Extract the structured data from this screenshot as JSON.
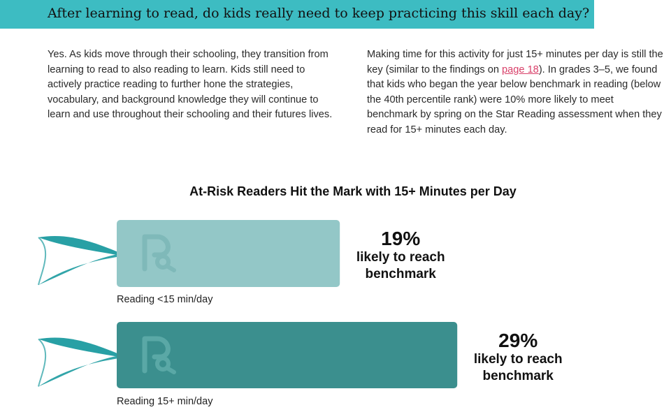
{
  "header": {
    "question": "After learning to read, do kids really need to keep practicing this skill each day?"
  },
  "body": {
    "left_paragraph": "Yes. As kids move through their schooling, they transition from learning to read to also reading to learn. Kids still need to actively practice reading to further hone the strategies, vocabulary, and background knowledge they will continue to learn and use throughout their schooling and their futures lives.",
    "right_before_link": "Making time for this activity for just 15+ minutes per day is still the key (similar to the findings on ",
    "right_link": "page 18",
    "right_after_link": "). In grades 3–5, we found that kids who began the year below benchmark in reading (below the 40th percentile rank) were 10% more likely to meet benchmark by spring on the Star Reading assessment when they read for 15+ minutes each day."
  },
  "colors": {
    "banner": "#3dbcc2",
    "bar_light": "#93c7c7",
    "bar_dark": "#3b8f8e",
    "ribbon": "#1c9ba0",
    "link": "#d9416a"
  },
  "chart_data": {
    "type": "bar",
    "orientation": "horizontal",
    "title": "At-Risk Readers Hit the Mark with 15+ Minutes per Day",
    "categories": [
      "Reading <15 min/day",
      "Reading 15+ min/day"
    ],
    "values": [
      19,
      29
    ],
    "unit": "%",
    "value_labels": [
      "19%",
      "29%"
    ],
    "annotation_lines": [
      "likely to reach",
      "benchmark"
    ],
    "bar_icon": "reading-r-logo-icon",
    "grid": false,
    "legend": "none"
  }
}
